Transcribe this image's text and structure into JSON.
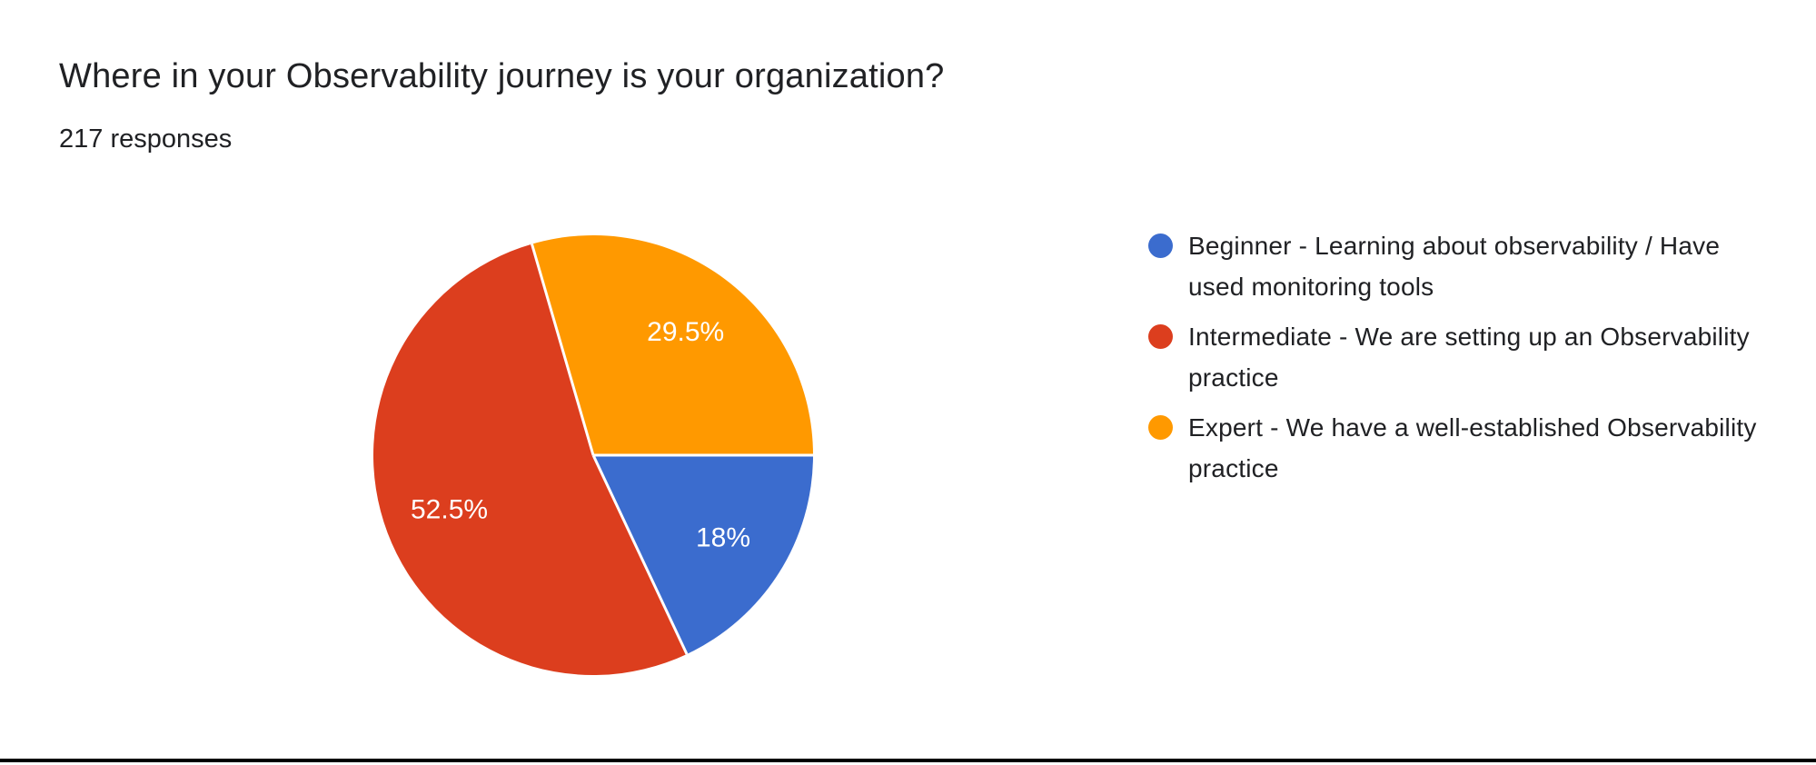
{
  "header": {
    "title": "Where in your Observability journey is your organization?",
    "responses_label": "217 responses"
  },
  "colors": {
    "background": "#ffffff",
    "title_text": "#202124",
    "legend_text": "#202124",
    "slice_label_text": "#ffffff",
    "slice_separator": "#ffffff",
    "bottom_rule": "#000000"
  },
  "chart_data": {
    "type": "pie",
    "title": "Where in your Observability journey is your organization?",
    "subtitle": "217 responses",
    "total_responses": 217,
    "legend_position": "right",
    "start_angle_deg_from_3_oclock": 0,
    "direction": "clockwise",
    "slices": [
      {
        "label": "Beginner - Learning about observability / Have used monitoring tools",
        "value_pct": 18,
        "display": "18%",
        "color": "#3b6cce"
      },
      {
        "label": "Intermediate - We are setting up an Observability practice",
        "value_pct": 52.5,
        "display": "52.5%",
        "color": "#dc3e1e"
      },
      {
        "label": "Expert - We have a well-established Observability practice",
        "value_pct": 29.5,
        "display": "29.5%",
        "color": "#ff9900"
      }
    ]
  }
}
